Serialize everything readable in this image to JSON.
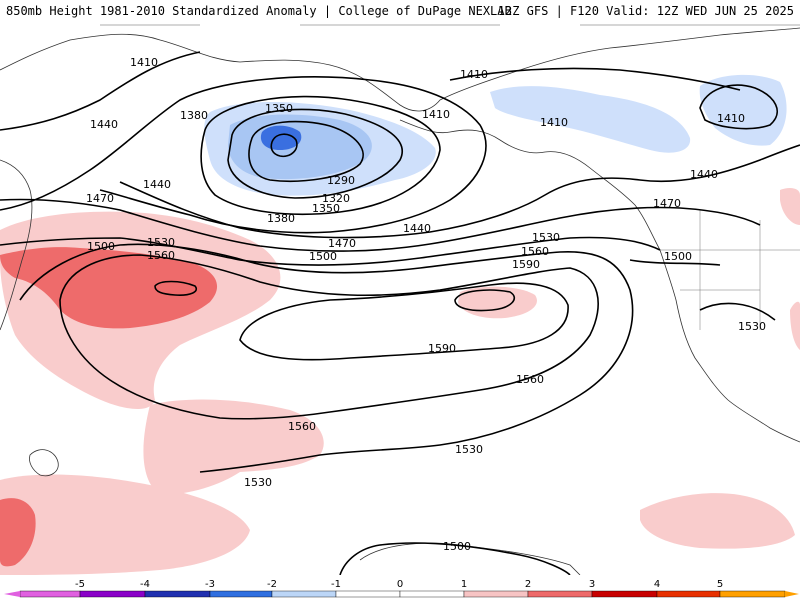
{
  "header": {
    "left_title": "850mb Height 1981-2010 Standardized Anomaly | College of DuPage NEXLAB",
    "right_title": "12Z GFS | F120 Valid: 12Z WED JUN 25 2025"
  },
  "contour_labels": [
    {
      "id": "c1410a",
      "text": "1410"
    },
    {
      "id": "c1440a",
      "text": "1440"
    },
    {
      "id": "c1380a",
      "text": "1380"
    },
    {
      "id": "c1350a",
      "text": "1350"
    },
    {
      "id": "c1410b",
      "text": "1410"
    },
    {
      "id": "c1440b",
      "text": "1440"
    },
    {
      "id": "c1290",
      "text": "1290"
    },
    {
      "id": "c1320",
      "text": "1320"
    },
    {
      "id": "c1350b",
      "text": "1350"
    },
    {
      "id": "c1380b",
      "text": "1380"
    },
    {
      "id": "c1470a",
      "text": "1470"
    },
    {
      "id": "c1500a",
      "text": "1500"
    },
    {
      "id": "c1530a",
      "text": "1530"
    },
    {
      "id": "c1560a",
      "text": "1560"
    },
    {
      "id": "c1440c",
      "text": "1440"
    },
    {
      "id": "c1470b",
      "text": "1470"
    },
    {
      "id": "c1500b",
      "text": "1500"
    },
    {
      "id": "c1410c",
      "text": "1410"
    },
    {
      "id": "c1410d",
      "text": "1410"
    },
    {
      "id": "c1410e",
      "text": "1410"
    },
    {
      "id": "c1440d",
      "text": "1440"
    },
    {
      "id": "c1470c",
      "text": "1470"
    },
    {
      "id": "c1530b",
      "text": "1530"
    },
    {
      "id": "c1560b",
      "text": "1560"
    },
    {
      "id": "c1590a",
      "text": "1590"
    },
    {
      "id": "c1500c",
      "text": "1500"
    },
    {
      "id": "c1530c",
      "text": "1530"
    },
    {
      "id": "c1590b",
      "text": "1590"
    },
    {
      "id": "c1560c",
      "text": "1560"
    },
    {
      "id": "c1560d",
      "text": "1560"
    },
    {
      "id": "c1530d",
      "text": "1530"
    },
    {
      "id": "c1530e",
      "text": "1530"
    },
    {
      "id": "c1500d",
      "text": "1500"
    }
  ],
  "colorbar": {
    "ticks": [
      "-5",
      "-4",
      "-3",
      "-2",
      "-1",
      "0",
      "1",
      "2",
      "3",
      "4",
      "5"
    ],
    "colors": [
      "#e060e0",
      "#8a00c8",
      "#2030b0",
      "#2f6fe0",
      "#bcd6f7",
      "#ffffff",
      "#ffffff",
      "#f7c4c4",
      "#ee6a6a",
      "#c80000",
      "#e83000",
      "#ffa000"
    ]
  },
  "anomaly_colors": {
    "weak_negative": "#cfe0fb",
    "moderate_negative": "#a8c6f3",
    "strong_negative": "#3a6fe0",
    "weak_positive": "#f9cccc",
    "moderate_positive": "#ee6b6b"
  }
}
